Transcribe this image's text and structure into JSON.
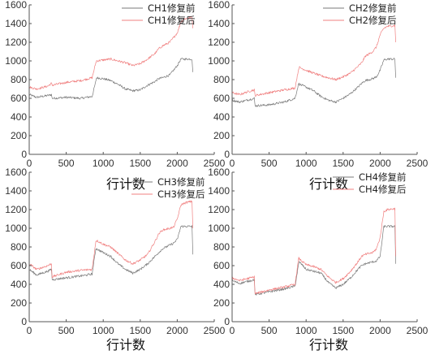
{
  "chart_data": [
    {
      "type": "line",
      "xlabel": "行计数",
      "ylabel": "",
      "xlim": [
        0,
        2500
      ],
      "ylim": [
        0,
        1600
      ],
      "xticks": [
        0,
        500,
        1000,
        1500,
        2000,
        2500
      ],
      "yticks": [
        0,
        200,
        400,
        600,
        800,
        1000,
        1200,
        1400,
        1600
      ],
      "grid": false,
      "legend_position": "top-right",
      "colors": {
        "before": "#7a7a7a",
        "after": "#f08080"
      },
      "series": [
        {
          "name": "CH1修复前",
          "color": "#7a7a7a",
          "x": [
            0,
            100,
            250,
            300,
            310,
            500,
            700,
            850,
            900,
            910,
            1000,
            1100,
            1200,
            1300,
            1400,
            1500,
            1600,
            1700,
            1750,
            1800,
            1900,
            1950,
            2000,
            2050,
            2100,
            2200,
            2210
          ],
          "y": [
            640,
            610,
            630,
            640,
            600,
            610,
            600,
            620,
            780,
            820,
            810,
            790,
            750,
            700,
            680,
            690,
            740,
            780,
            810,
            820,
            850,
            900,
            950,
            1020,
            1020,
            1020,
            880
          ]
        },
        {
          "name": "CH1修复后",
          "color": "#f08080",
          "x": [
            0,
            100,
            250,
            300,
            310,
            500,
            700,
            850,
            900,
            910,
            1000,
            1100,
            1200,
            1300,
            1400,
            1500,
            1600,
            1700,
            1750,
            1800,
            1900,
            1950,
            2000,
            2050,
            2100,
            2200,
            2210
          ],
          "y": [
            720,
            700,
            730,
            760,
            740,
            770,
            790,
            820,
            980,
            1000,
            1010,
            1020,
            1000,
            980,
            950,
            970,
            1020,
            1080,
            1130,
            1160,
            1200,
            1250,
            1300,
            1420,
            1450,
            1470,
            1350
          ]
        }
      ]
    },
    {
      "type": "line",
      "xlabel": "行计数",
      "ylabel": "",
      "xlim": [
        0,
        2500
      ],
      "ylim": [
        0,
        1600
      ],
      "xticks": [
        0,
        500,
        1000,
        1500,
        2000,
        2500
      ],
      "yticks": [
        0,
        200,
        400,
        600,
        800,
        1000,
        1200,
        1400,
        1600
      ],
      "grid": false,
      "legend_position": "top-right",
      "colors": {
        "before": "#7a7a7a",
        "after": "#f08080"
      },
      "series": [
        {
          "name": "CH2修复前",
          "color": "#7a7a7a",
          "x": [
            0,
            100,
            250,
            300,
            310,
            500,
            700,
            850,
            900,
            910,
            1000,
            1100,
            1200,
            1300,
            1400,
            1500,
            1600,
            1700,
            1750,
            1800,
            1900,
            1950,
            2000,
            2050,
            2100,
            2200,
            2210
          ],
          "y": [
            580,
            560,
            590,
            600,
            520,
            530,
            560,
            600,
            760,
            750,
            720,
            680,
            620,
            580,
            560,
            600,
            650,
            720,
            760,
            790,
            810,
            830,
            900,
            1010,
            1020,
            1020,
            820
          ]
        },
        {
          "name": "CH2修复后",
          "color": "#f08080",
          "x": [
            0,
            100,
            250,
            300,
            310,
            500,
            700,
            850,
            900,
            910,
            1000,
            1100,
            1200,
            1300,
            1400,
            1500,
            1600,
            1700,
            1750,
            1800,
            1900,
            1950,
            2000,
            2050,
            2100,
            2200,
            2210
          ],
          "y": [
            660,
            640,
            680,
            690,
            630,
            660,
            690,
            710,
            920,
            930,
            900,
            870,
            840,
            820,
            800,
            830,
            870,
            940,
            980,
            1050,
            1100,
            1150,
            1280,
            1350,
            1370,
            1380,
            1200
          ]
        }
      ]
    },
    {
      "type": "line",
      "xlabel": "行计数",
      "ylabel": "",
      "xlim": [
        0,
        2500
      ],
      "ylim": [
        0,
        1600
      ],
      "xticks": [
        0,
        500,
        1000,
        1500,
        2000,
        2500
      ],
      "yticks": [
        0,
        200,
        400,
        600,
        800,
        1000,
        1200,
        1400,
        1600
      ],
      "grid": false,
      "legend_position": "top-right",
      "colors": {
        "before": "#7a7a7a",
        "after": "#f08080"
      },
      "series": [
        {
          "name": "CH3修复前",
          "color": "#7a7a7a",
          "x": [
            0,
            100,
            250,
            300,
            310,
            500,
            700,
            850,
            900,
            910,
            1000,
            1100,
            1200,
            1300,
            1400,
            1500,
            1600,
            1700,
            1750,
            1800,
            1900,
            1950,
            2000,
            2050,
            2100,
            2200,
            2210
          ],
          "y": [
            560,
            500,
            540,
            560,
            450,
            470,
            490,
            510,
            780,
            780,
            740,
            700,
            620,
            560,
            520,
            560,
            620,
            700,
            740,
            780,
            820,
            840,
            880,
            1020,
            1020,
            1020,
            720
          ]
        },
        {
          "name": "CH3修复后",
          "color": "#f08080",
          "x": [
            0,
            100,
            250,
            300,
            310,
            500,
            700,
            850,
            900,
            910,
            1000,
            1100,
            1200,
            1300,
            1400,
            1500,
            1600,
            1700,
            1750,
            1800,
            1900,
            1950,
            2000,
            2050,
            2100,
            2200,
            2210
          ],
          "y": [
            620,
            560,
            600,
            620,
            480,
            530,
            550,
            560,
            860,
            870,
            830,
            800,
            730,
            660,
            620,
            660,
            720,
            860,
            940,
            980,
            1000,
            1010,
            1100,
            1250,
            1270,
            1290,
            1000
          ]
        }
      ]
    },
    {
      "type": "line",
      "xlabel": "行计数",
      "ylabel": "",
      "xlim": [
        0,
        2500
      ],
      "ylim": [
        0,
        1600
      ],
      "xticks": [
        0,
        500,
        1000,
        1500,
        2000,
        2500
      ],
      "yticks": [
        0,
        200,
        400,
        600,
        800,
        1000,
        1200,
        1400,
        1600
      ],
      "grid": false,
      "legend_position": "top-right",
      "colors": {
        "before": "#7a7a7a",
        "after": "#f08080"
      },
      "series": [
        {
          "name": "CH4修复前",
          "color": "#7a7a7a",
          "x": [
            0,
            100,
            250,
            300,
            310,
            500,
            700,
            850,
            900,
            910,
            1000,
            1100,
            1200,
            1300,
            1400,
            1500,
            1600,
            1700,
            1750,
            1800,
            1900,
            1950,
            2000,
            2050,
            2100,
            2200,
            2210
          ],
          "y": [
            440,
            410,
            440,
            450,
            290,
            320,
            350,
            380,
            620,
            640,
            560,
            540,
            520,
            420,
            360,
            400,
            470,
            560,
            600,
            620,
            640,
            650,
            700,
            1020,
            1020,
            1020,
            620
          ]
        },
        {
          "name": "CH4修复后",
          "color": "#f08080",
          "x": [
            0,
            100,
            250,
            300,
            310,
            500,
            700,
            850,
            900,
            910,
            1000,
            1100,
            1200,
            1300,
            1400,
            1500,
            1600,
            1700,
            1750,
            1800,
            1900,
            1950,
            2000,
            2050,
            2100,
            2200,
            2210
          ],
          "y": [
            470,
            440,
            470,
            480,
            300,
            340,
            370,
            400,
            680,
            670,
            610,
            590,
            560,
            480,
            420,
            460,
            540,
            640,
            700,
            720,
            740,
            780,
            900,
            1180,
            1200,
            1210,
            700
          ]
        }
      ]
    }
  ]
}
